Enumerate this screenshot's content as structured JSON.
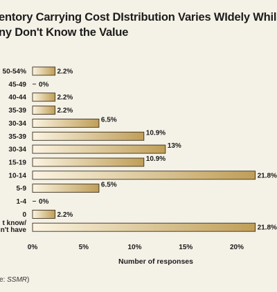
{
  "title": {
    "line1": "entory Carrying Cost DIstribution Varies WIdely While",
    "line2": "ny Don't Know the Value"
  },
  "source": {
    "prefix": "ce: ",
    "name": "SSMR",
    "suffix": ")"
  },
  "colors": {
    "bar_light": "#fbf4e2",
    "bar_dark": "#bf9e57",
    "bar_stroke": "#3a2e1e",
    "background": "#f4f1e6"
  },
  "chart_data": {
    "type": "bar",
    "orientation": "horizontal",
    "categories": [
      "50-54%",
      "45-49",
      "40-44",
      "35-39",
      "30-34",
      "35-39",
      "30-34",
      "15-19",
      "10-14",
      "5-9",
      "1-4",
      "0",
      "t know/\nn't have"
    ],
    "values": [
      2.2,
      0,
      2.2,
      2.2,
      6.5,
      10.9,
      13,
      10.9,
      21.8,
      6.5,
      0,
      2.2,
      21.8
    ],
    "value_labels": [
      "2.2%",
      "0%",
      "2.2%",
      "2.2%",
      "6.5%",
      "10.9%",
      "13%",
      "10.9%",
      "21.8%",
      "6.5%",
      "0%",
      "2.2%",
      "21.8%"
    ],
    "xlim": [
      0,
      20
    ],
    "x_ticks": [
      "0%",
      "5%",
      "10%",
      "15%",
      "20%"
    ],
    "xlabel": "Number of responses",
    "ylabel": "",
    "grid": false,
    "legend": false
  }
}
